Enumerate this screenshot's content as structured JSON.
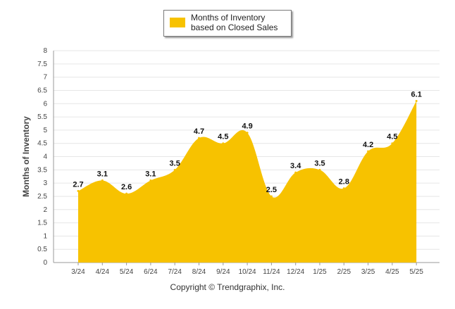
{
  "chart_data": {
    "type": "area",
    "ylabel": "Months of Inventory",
    "xlabel": "",
    "categories": [
      "3/24",
      "4/24",
      "5/24",
      "6/24",
      "7/24",
      "8/24",
      "9/24",
      "10/24",
      "11/24",
      "12/24",
      "1/25",
      "2/25",
      "3/25",
      "4/25",
      "5/25"
    ],
    "series": [
      {
        "name": "Months of Inventory based on Closed Sales",
        "values": [
          2.7,
          3.1,
          2.6,
          3.1,
          3.5,
          4.7,
          4.5,
          4.9,
          2.5,
          3.4,
          3.5,
          2.8,
          4.2,
          4.5,
          6.1
        ]
      }
    ],
    "ylim": [
      0,
      8
    ],
    "yticks": [
      "0",
      "0.5",
      "1",
      "1.5",
      "2",
      "2.5",
      "3",
      "3.5",
      "4",
      "4.5",
      "5",
      "5.5",
      "6",
      "6.5",
      "7",
      "7.5",
      "8"
    ],
    "data_labels": [
      "2.7",
      "3.1",
      "2.6",
      "3.1",
      "3.5",
      "4.7",
      "4.5",
      "4.9",
      "2.5",
      "3.4",
      "3.5",
      "2.8",
      "4.2",
      "4.5",
      "6.1"
    ],
    "grid": true,
    "legend_position": "top-center",
    "colors": {
      "fill": "#F7C200",
      "grid": "#e6e6e6",
      "axis": "#999999"
    }
  },
  "legend": {
    "label": "Months of Inventory based on Closed Sales"
  },
  "footer": {
    "copyright": "Copyright © Trendgraphix, Inc."
  }
}
